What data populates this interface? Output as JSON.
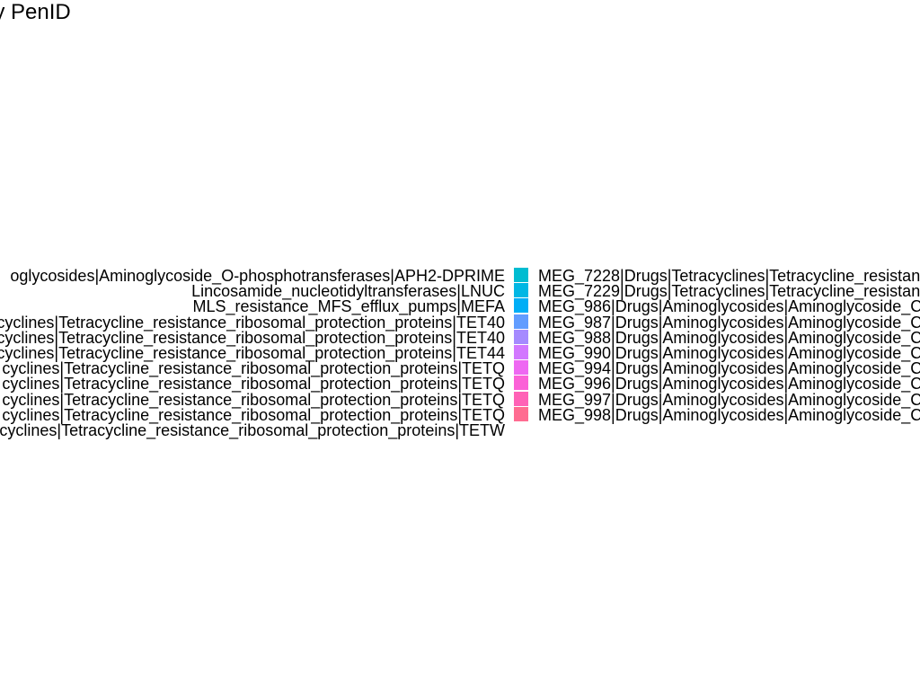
{
  "chart_data": {
    "type": "pie",
    "title": "e by PenID",
    "legend_placement": "center",
    "legend": {
      "left_entries": [
        "oglycosides|Aminoglycoside_O-phosphotransferases|APH2-DPRIME",
        "Lincosamide_nucleotidyltransferases|LNUC",
        "MLS_resistance_MFS_efflux_pumps|MEFA",
        "cyclines|Tetracycline_resistance_ribosomal_protection_proteins|TET40",
        "cyclines|Tetracycline_resistance_ribosomal_protection_proteins|TET40",
        "cyclines|Tetracycline_resistance_ribosomal_protection_proteins|TET44",
        "cyclines|Tetracycline_resistance_ribosomal_protection_proteins|TETQ",
        "cyclines|Tetracycline_resistance_ribosomal_protection_proteins|TETQ",
        "cyclines|Tetracycline_resistance_ribosomal_protection_proteins|TETQ",
        "cyclines|Tetracycline_resistance_ribosomal_protection_proteins|TETQ",
        "cyclines|Tetracycline_resistance_ribosomal_protection_proteins|TETW"
      ],
      "right_entries": [
        {
          "label": "MEG_7228|Drugs|Tetracyclines|Tetracycline_resistan",
          "color": "#00BCD1"
        },
        {
          "label": "MEG_7229|Drugs|Tetracyclines|Tetracycline_resistan",
          "color": "#00B7E4"
        },
        {
          "label": "MEG_986|Drugs|Aminoglycosides|Aminoglycoside_C",
          "color": "#00AEF6"
        },
        {
          "label": "MEG_987|Drugs|Aminoglycosides|Aminoglycoside_C",
          "color": "#619CFF"
        },
        {
          "label": "MEG_988|Drugs|Aminoglycosides|Aminoglycoside_C",
          "color": "#A58AFF"
        },
        {
          "label": "MEG_990|Drugs|Aminoglycosides|Aminoglycoside_C",
          "color": "#D277FF"
        },
        {
          "label": "MEG_994|Drugs|Aminoglycosides|Aminoglycoside_C",
          "color": "#EE68F2"
        },
        {
          "label": "MEG_996|Drugs|Aminoglycosides|Aminoglycoside_C",
          "color": "#FB61D7"
        },
        {
          "label": "MEG_997|Drugs|Aminoglycosides|Aminoglycoside_C",
          "color": "#FF62B6"
        },
        {
          "label": "MEG_998|Drugs|Aminoglycosides|Aminoglycoside_C",
          "color": "#FF6C91"
        }
      ]
    }
  }
}
